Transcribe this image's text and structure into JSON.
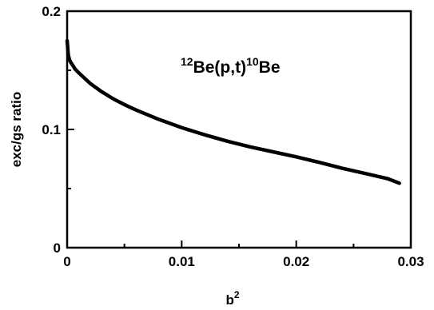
{
  "chart_data": {
    "type": "line",
    "title": "",
    "annotation": {
      "mass1": "12",
      "core": "Be(p,t)",
      "mass2": "10",
      "tail": "Be"
    },
    "xlabel": {
      "base": "b",
      "sup": "2"
    },
    "ylabel": "exc/gs ratio",
    "xlim": [
      0,
      0.03
    ],
    "ylim": [
      0,
      0.2
    ],
    "x_ticks": [
      {
        "value": 0,
        "label": "0"
      },
      {
        "value": 0.01,
        "label": "0.01"
      },
      {
        "value": 0.02,
        "label": "0.02"
      },
      {
        "value": 0.03,
        "label": "0.03"
      }
    ],
    "x_minor_ticks": [
      0.005,
      0.015,
      0.025
    ],
    "y_ticks": [
      {
        "value": 0,
        "label": "0"
      },
      {
        "value": 0.1,
        "label": "0.1"
      },
      {
        "value": 0.2,
        "label": "0.2"
      }
    ],
    "y_minor_ticks": [
      0.05,
      0.15
    ],
    "grid": false,
    "series": [
      {
        "color": "#000000",
        "x": [
          0,
          0.0001,
          0.0002,
          0.0003,
          0.0005,
          0.0007,
          0.001,
          0.0015,
          0.002,
          0.003,
          0.004,
          0.005,
          0.006,
          0.008,
          0.01,
          0.012,
          0.014,
          0.016,
          0.018,
          0.02,
          0.022,
          0.024,
          0.026,
          0.028,
          0.029
        ],
        "y": [
          0.175,
          0.163,
          0.159,
          0.157,
          0.154,
          0.151,
          0.148,
          0.1435,
          0.139,
          0.132,
          0.126,
          0.121,
          0.1165,
          0.1085,
          0.1015,
          0.0955,
          0.09,
          0.0852,
          0.081,
          0.0768,
          0.0722,
          0.0672,
          0.0628,
          0.0583,
          0.0545
        ]
      }
    ]
  }
}
